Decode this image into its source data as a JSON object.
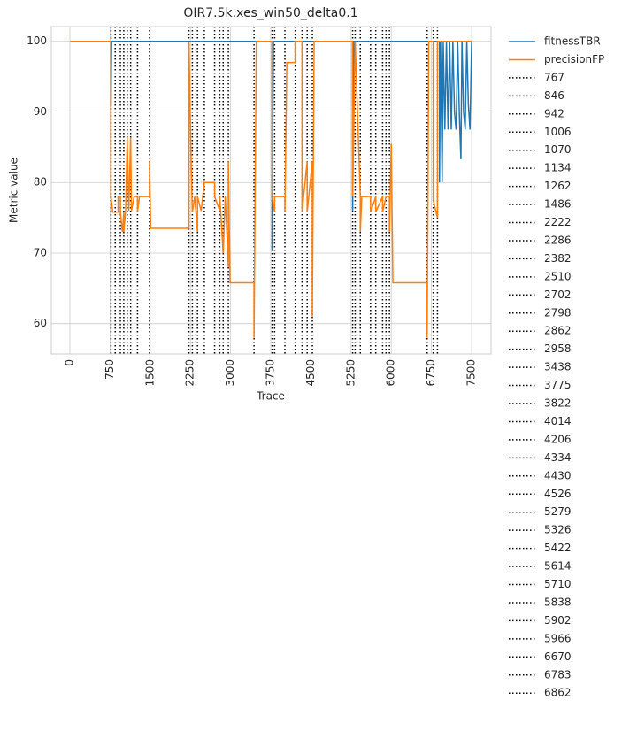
{
  "chart_data": {
    "type": "line",
    "title": "OIR7.5k.xes_win50_delta0.1",
    "x_label": "Trace",
    "y_label": "Metric value",
    "xlim": [
      -347,
      7863
    ],
    "ylim": [
      55.7,
      102.1
    ],
    "xticks": [
      0,
      750,
      1500,
      2250,
      3000,
      3750,
      4500,
      5250,
      6000,
      6750,
      7500
    ],
    "yticks": [
      60,
      70,
      80,
      90,
      100
    ],
    "grid": true,
    "legend": "outside-right",
    "series": [
      {
        "name": "fitnessTBR",
        "color": "#1f77b4",
        "x": [
          0,
          767,
          767,
          780,
          3775,
          3775,
          3790,
          3800,
          5279,
          5279,
          5300,
          6900,
          6900,
          6920,
          6950,
          6970,
          7000,
          7030,
          7060,
          7090,
          7120,
          7150,
          7180,
          7210,
          7240,
          7270,
          7300,
          7320,
          7350,
          7380,
          7410,
          7440,
          7470,
          7500
        ],
        "values": [
          100,
          100,
          91,
          100,
          100,
          70.5,
          91,
          100,
          100,
          76,
          100,
          100,
          80,
          100,
          80,
          100,
          87.5,
          100,
          87.5,
          100,
          87.5,
          100,
          90,
          87.5,
          100,
          90,
          83.3,
          100,
          90,
          87.5,
          100,
          91,
          87.5,
          100
        ]
      },
      {
        "name": "precisionFP",
        "color": "#ff7f0e",
        "x": [
          0,
          767,
          767,
          800,
          900,
          900,
          942,
          942,
          980,
          1006,
          1006,
          1040,
          1070,
          1100,
          1134,
          1150,
          1200,
          1262,
          1262,
          1300,
          1486,
          1486,
          1510,
          2222,
          2222,
          2260,
          2286,
          2330,
          2382,
          2382,
          2450,
          2510,
          2702,
          2702,
          2798,
          2798,
          2862,
          2900,
          2958,
          2958,
          2990,
          3438,
          3438,
          3480,
          3775,
          3775,
          3820,
          3822,
          4014,
          4014,
          4050,
          4206,
          4206,
          4334,
          4334,
          4430,
          4430,
          4526,
          4526,
          4560,
          5279,
          5279,
          5326,
          5422,
          5422,
          5450,
          5614,
          5614,
          5710,
          5710,
          5838,
          5838,
          5902,
          5966,
          5966,
          6000,
          6030,
          6670,
          6670,
          6700,
          6783,
          6783,
          6862,
          6862,
          7500
        ],
        "values": [
          100,
          100,
          78,
          75.8,
          75.8,
          78,
          78,
          75.8,
          73,
          75.8,
          73,
          76,
          86.4,
          76,
          86.4,
          76,
          78,
          78,
          75.8,
          78,
          78,
          83,
          73.5,
          73.5,
          100,
          84,
          75.8,
          78,
          73,
          78,
          76,
          80,
          80,
          78,
          76,
          78,
          70,
          78,
          68,
          83,
          65.8,
          65.8,
          58,
          100,
          100,
          78,
          75.8,
          78,
          78,
          75.8,
          97,
          97,
          100,
          100,
          75.8,
          83,
          75.8,
          83,
          61,
          100,
          100,
          78,
          100,
          78,
          73,
          78,
          78,
          75.8,
          78,
          75.8,
          78,
          75.8,
          78,
          78,
          73,
          85.5,
          65.8,
          65.8,
          58,
          100,
          100,
          77.5,
          75,
          100,
          100
        ]
      }
    ],
    "vlines": {
      "color": "#000000",
      "values": [
        767,
        846,
        942,
        1006,
        1070,
        1134,
        1262,
        1486,
        2222,
        2286,
        2382,
        2510,
        2702,
        2798,
        2862,
        2958,
        3438,
        3775,
        3822,
        4014,
        4206,
        4334,
        4430,
        4526,
        5279,
        5326,
        5422,
        5614,
        5710,
        5838,
        5902,
        5966,
        6670,
        6783,
        6862
      ]
    }
  }
}
